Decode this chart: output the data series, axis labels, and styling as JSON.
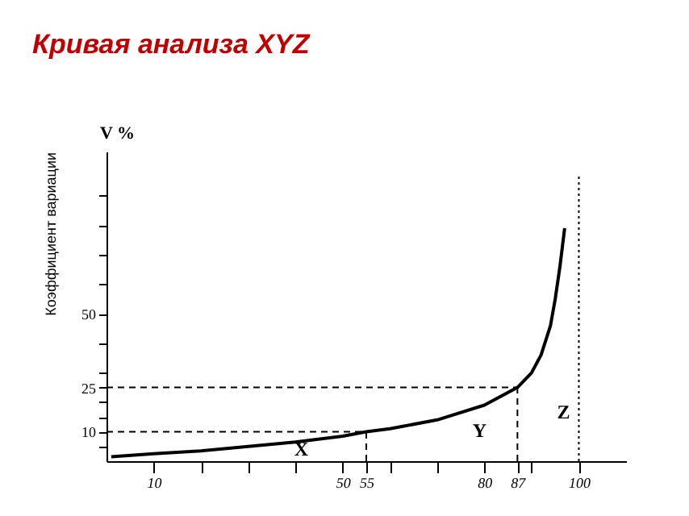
{
  "chart_data": {
    "type": "line",
    "title": "Кривая анализа XYZ",
    "ylabel": "Коэффициент вариации",
    "annotations": [
      "V %",
      "X",
      "Y",
      "Z"
    ],
    "x": [
      1,
      10,
      20,
      30,
      40,
      50,
      55,
      60,
      70,
      80,
      87,
      90,
      92,
      94,
      95,
      96,
      97
    ],
    "series": [
      {
        "color": "#000000",
        "values": [
          1.5,
          2.5,
          3.5,
          5,
          6.5,
          8.5,
          10,
          11,
          14,
          19,
          25,
          30,
          36,
          46,
          55,
          66,
          79
        ]
      }
    ],
    "xlim": [
      0,
      110
    ],
    "ylim": [
      0,
      105
    ],
    "xticks": [
      10,
      {
        "value": 20,
        "label": null
      },
      {
        "value": 30,
        "label": null
      },
      {
        "value": 40,
        "label": null
      },
      50,
      55,
      {
        "value": 60,
        "label": null
      },
      {
        "value": 70,
        "label": null
      },
      80,
      87,
      {
        "value": 90,
        "label": null
      },
      100
    ],
    "yticks": [
      {
        "value": 5,
        "label": null
      },
      10,
      {
        "value": 15,
        "label": null
      },
      {
        "value": 20,
        "label": null
      },
      25,
      {
        "value": 30,
        "label": null
      },
      {
        "value": 40,
        "label": null
      },
      50,
      {
        "value": 60,
        "label": null
      },
      {
        "value": 70,
        "label": null
      },
      {
        "value": 80,
        "label": null
      },
      {
        "value": 90,
        "label": null
      }
    ],
    "ref_lines": [
      {
        "axis": "y",
        "value": 10,
        "line_style": "dashed"
      },
      {
        "axis": "x",
        "value": 55,
        "line_style": "dashed"
      },
      {
        "axis": "y",
        "value": 25,
        "line_style": "dashed"
      },
      {
        "axis": "x",
        "value": 87,
        "line_style": "dashed"
      },
      {
        "axis": "x",
        "value": 100,
        "line_style": "dotted"
      }
    ],
    "grid": false
  }
}
